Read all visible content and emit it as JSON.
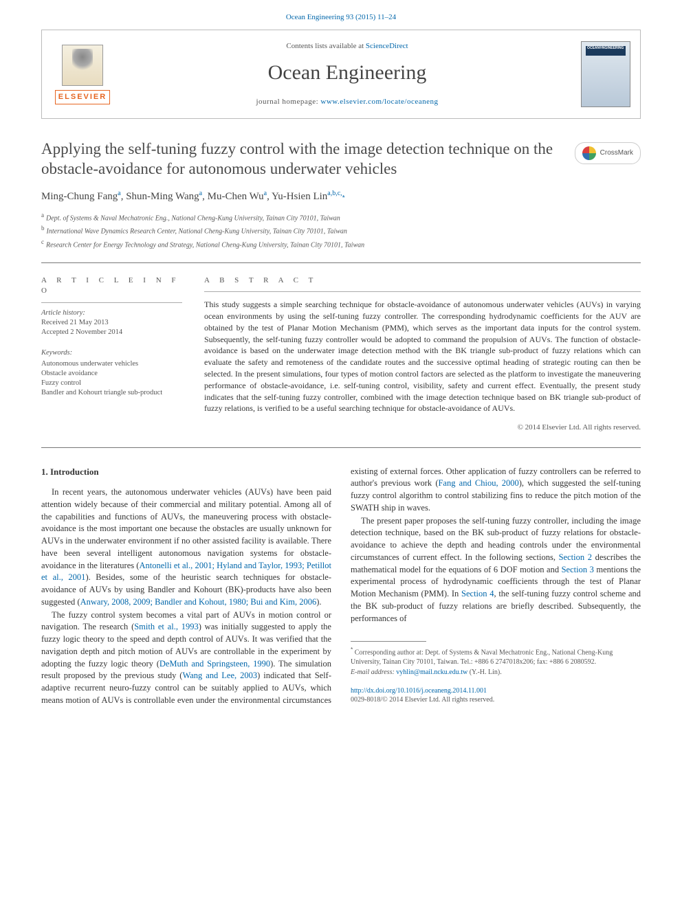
{
  "citation": "Ocean Engineering 93 (2015) 11–24",
  "header": {
    "contents_prefix": "Contents lists available at ",
    "contents_link": "ScienceDirect",
    "journal_name": "Ocean Engineering",
    "homepage_prefix": "journal homepage: ",
    "homepage_url": "www.elsevier.com/locate/oceaneng",
    "elsevier_label": "ELSEVIER"
  },
  "crossmark_label": "CrossMark",
  "title": "Applying the self-tuning fuzzy control with the image detection technique on the obstacle-avoidance for autonomous underwater vehicles",
  "authors_html": "Ming-Chung Fang",
  "author_list": [
    {
      "name": "Ming-Chung Fang",
      "aff": "a"
    },
    {
      "name": "Shun-Ming Wang",
      "aff": "a"
    },
    {
      "name": "Mu-Chen Wu",
      "aff": "a"
    },
    {
      "name": "Yu-Hsien Lin",
      "aff": "a,b,c,",
      "corr": true
    }
  ],
  "affiliations": [
    {
      "sup": "a",
      "text": "Dept. of Systems & Naval Mechatronic Eng., National Cheng-Kung University, Tainan City 70101, Taiwan"
    },
    {
      "sup": "b",
      "text": "International Wave Dynamics Research Center, National Cheng-Kung University, Tainan City 70101, Taiwan"
    },
    {
      "sup": "c",
      "text": "Research Center for Energy Technology and Strategy, National Cheng-Kung University, Tainan City 70101, Taiwan"
    }
  ],
  "article_info": {
    "heading": "A R T I C L E  I N F O",
    "history_label": "Article history:",
    "received": "Received 21 May 2013",
    "accepted": "Accepted 2 November 2014",
    "keywords_label": "Keywords:",
    "keywords": [
      "Autonomous underwater vehicles",
      "Obstacle avoidance",
      "Fuzzy control",
      "Bandler and Kohourt triangle sub-product"
    ]
  },
  "abstract": {
    "heading": "A B S T R A C T",
    "text": "This study suggests a simple searching technique for obstacle-avoidance of autonomous underwater vehicles (AUVs) in varying ocean environments by using the self-tuning fuzzy controller. The corresponding hydrodynamic coefficients for the AUV are obtained by the test of Planar Motion Mechanism (PMM), which serves as the important data inputs for the control system. Subsequently, the self-tuning fuzzy controller would be adopted to command the propulsion of AUVs. The function of obstacle-avoidance is based on the underwater image detection method with the BK triangle sub-product of fuzzy relations which can evaluate the safety and remoteness of the candidate routes and the successive optimal heading of strategic routing can then be selected. In the present simulations, four types of motion control factors are selected as the platform to investigate the maneuvering performance of obstacle-avoidance, i.e. self-tuning control, visibility, safety and current effect. Eventually, the present study indicates that the self-tuning fuzzy controller, combined with the image detection technique based on BK triangle sub-product of fuzzy relations, is verified to be a useful searching technique for obstacle-avoidance of AUVs.",
    "copyright": "© 2014 Elsevier Ltd. All rights reserved."
  },
  "section1": {
    "heading": "1.  Introduction",
    "p1_a": "In recent years, the autonomous underwater vehicles (AUVs) have been paid attention widely because of their commercial and military potential. Among all of the capabilities and functions of AUVs, the maneuvering process with obstacle-avoidance is the most important one because the obstacles are usually unknown for AUVs in the underwater environment if no other assisted facility is available. There have been several intelligent autonomous navigation systems for obstacle-avoidance in the literatures (",
    "p1_cite1": "Antonelli et al., 2001; Hyland and Taylor, 1993; Petillot et al., 2001",
    "p1_b": "). Besides, some of the heuristic search techniques for obstacle-avoidance of AUVs by using Bandler and Kohourt (BK)-products have also been suggested (",
    "p1_cite2": "Anwary, 2008, 2009; Bandler and Kohout, 1980; Bui and Kim, 2006",
    "p1_c": ").",
    "p2_a": "The fuzzy control system becomes a vital part of AUVs in motion control or navigation. The research (",
    "p2_cite1": "Smith et al., 1993",
    "p2_b": ") was initially ",
    "p2_c": "suggested to apply the fuzzy logic theory to the speed and depth control of AUVs. It was verified that the navigation depth and pitch motion of AUVs are controllable in the experiment by adopting the fuzzy logic theory (",
    "p2_cite2": "DeMuth and Springsteen, 1990",
    "p2_d": "). The simulation result proposed by the previous study (",
    "p2_cite3": "Wang and Lee, 2003",
    "p2_e": ") indicated that Self-adaptive recurrent neuro-fuzzy control can be suitably applied to AUVs, which means motion of AUVs is controllable even under the environmental circumstances existing of external forces. Other application of fuzzy controllers can be referred to author's previous work (",
    "p2_cite4": "Fang and Chiou, 2000",
    "p2_f": "), which suggested the self-tuning fuzzy control algorithm to control stabilizing fins to reduce the pitch motion of the SWATH ship in waves.",
    "p3_a": "The present paper proposes the self-tuning fuzzy controller, including the image detection technique, based on the BK sub-product of fuzzy relations for obstacle-avoidance to achieve the depth and heading controls under the environmental circumstances of current effect. In the following sections, ",
    "p3_link1": "Section 2",
    "p3_b": " describes the mathematical model for the equations of 6 DOF motion and ",
    "p3_link2": "Section 3",
    "p3_c": " mentions the experimental process of hydrodynamic coefficients through the test of Planar Motion Mechanism (PMM). In ",
    "p3_link3": "Section 4",
    "p3_d": ", the self-tuning fuzzy control scheme and the BK sub-product of fuzzy relations are briefly described. Subsequently, the performances of"
  },
  "footnote": {
    "corr": "Corresponding author at: Dept. of Systems & Naval Mechatronic Eng., National Cheng-Kung University, Tainan City 70101, Taiwan. Tel.: +886 6 2747018x206; fax: +886 6 2080592.",
    "email_label": "E-mail address: ",
    "email": "vyhlin@mail.ncku.edu.tw",
    "email_who": " (Y.-H. Lin)."
  },
  "doi": {
    "url": "http://dx.doi.org/10.1016/j.oceaneng.2014.11.001",
    "issn_copy": "0029-8018/© 2014 Elsevier Ltd. All rights reserved."
  },
  "colors": {
    "link": "#0066aa",
    "elsevier_orange": "#e6641f",
    "text": "#333333",
    "muted": "#555555",
    "rule": "#777777"
  }
}
